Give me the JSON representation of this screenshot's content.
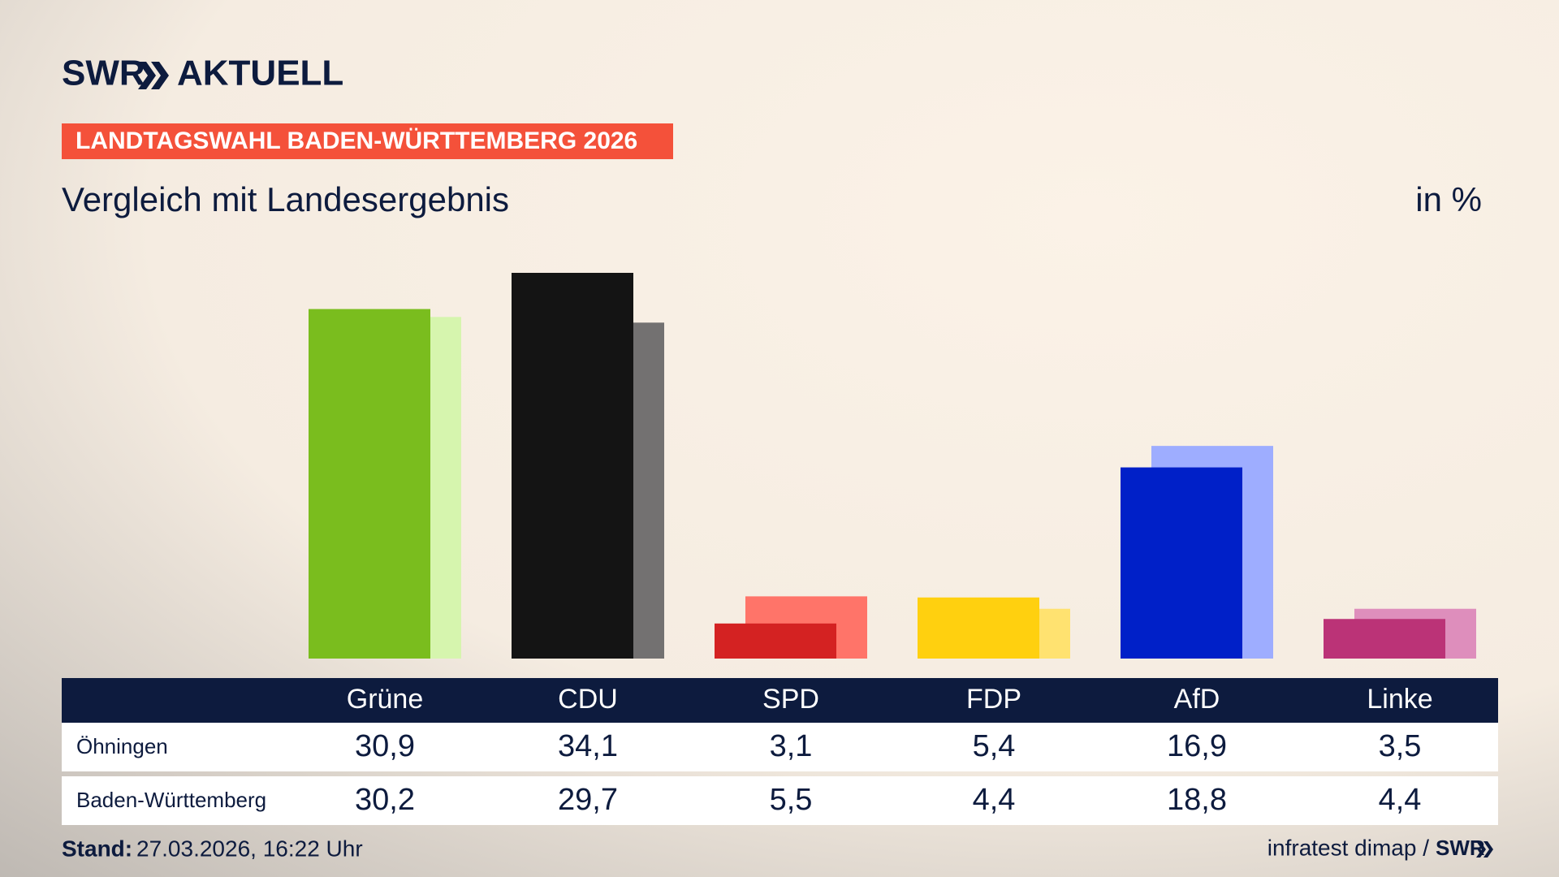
{
  "brand": {
    "name": "SWR",
    "product": "AKTUELL"
  },
  "chart_data": {
    "type": "bar",
    "kicker": "LANDTAGSWAHL BADEN-WÜRTTEMBERG 2026",
    "title": "Vergleich mit Landesergebnis",
    "unit": "in %",
    "categories": [
      "Grüne",
      "CDU",
      "SPD",
      "FDP",
      "AfD",
      "Linke"
    ],
    "series": [
      {
        "name": "Öhningen",
        "values": [
          30.9,
          34.1,
          3.1,
          5.4,
          16.9,
          3.5
        ],
        "value_labels": [
          "30,9",
          "34,1",
          "3,1",
          "5,4",
          "16,9",
          "3,5"
        ],
        "colors": [
          "#7abd1e",
          "#141414",
          "#d42222",
          "#ffd00f",
          "#0020c8",
          "#bb3377"
        ]
      },
      {
        "name": "Baden-Württemberg",
        "values": [
          30.2,
          29.7,
          5.5,
          4.4,
          18.8,
          4.4
        ],
        "value_labels": [
          "30,2",
          "29,7",
          "5,5",
          "4,4",
          "18,8",
          "4,4"
        ],
        "colors": [
          "#d6f5ae",
          "#737171",
          "#ff7469",
          "#ffe270",
          "#9eadff",
          "#de8ebc"
        ]
      }
    ]
  },
  "footer": {
    "stand_label": "Stand:",
    "stand": "27.03.2026, 16:22 Uhr",
    "source": "infratest dimap /",
    "source_logo": "SWR"
  }
}
